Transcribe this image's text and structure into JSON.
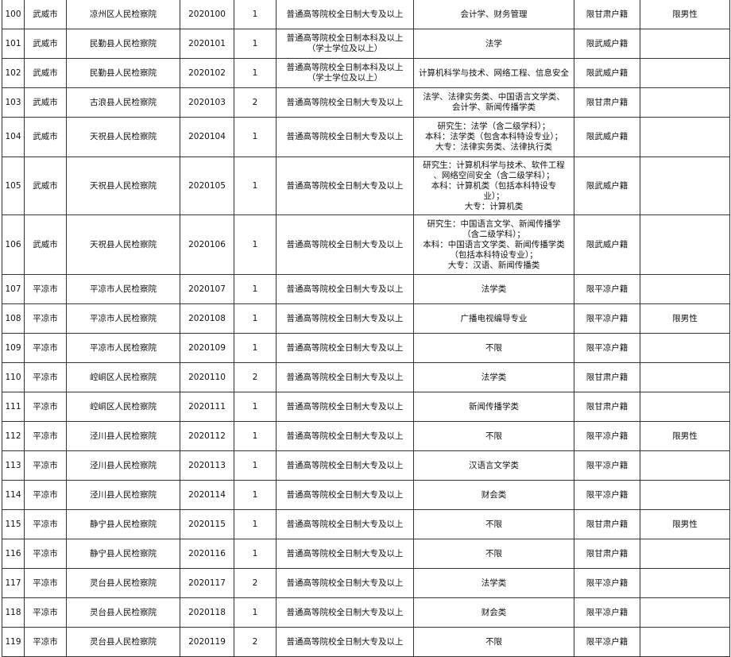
{
  "rows": [
    {
      "no": "100",
      "city": "武威市",
      "unit": "凉州区人民检察院",
      "code": "2020100",
      "count": "1",
      "edu": "普通高等院校全日制大专及以上",
      "major": "会计学、财务管理",
      "hukou": "限甘肃户籍",
      "note": "限男性"
    },
    {
      "no": "101",
      "city": "武威市",
      "unit": "民勤县人民检察院",
      "code": "2020101",
      "count": "1",
      "edu": "普通高等院校全日制本科及以上\n（学士学位及以上）",
      "major": "法学",
      "hukou": "限武威户籍",
      "note": ""
    },
    {
      "no": "102",
      "city": "武威市",
      "unit": "民勤县人民检察院",
      "code": "2020102",
      "count": "1",
      "edu": "普通高等院校全日制本科及以上\n（学士学位及以上）",
      "major": "计算机科学与技术、网络工程、信息安全",
      "hukou": "限武威户籍",
      "note": ""
    },
    {
      "no": "103",
      "city": "武威市",
      "unit": "古浪县人民检察院",
      "code": "2020103",
      "count": "2",
      "edu": "普通高等院校全日制大专及以上",
      "major": "法学、法律实务类、中国语言文学类、\n会计学、新闻传播学类",
      "hukou": "限甘肃户籍",
      "note": ""
    },
    {
      "no": "104",
      "city": "武威市",
      "unit": "天祝县人民检察院",
      "code": "2020104",
      "count": "1",
      "edu": "普通高等院校全日制大专及以上",
      "major": "研究生：法学（含二级学科）；\n本科：法学类（包含本科特设专业）；\n大专：法律实务类、法律执行类",
      "hukou": "限武威户籍",
      "note": ""
    },
    {
      "no": "105",
      "city": "武威市",
      "unit": "天祝县人民检察院",
      "code": "2020105",
      "count": "1",
      "edu": "普通高等院校全日制大专及以上",
      "major": "研究生：计算机科学与技术、软件工程\n、网络空间安全（含二级学科）；\n本科：计算机类（包括本科特设专\n业）；\n大专：计算机类",
      "hukou": "限武威户籍",
      "note": ""
    },
    {
      "no": "106",
      "city": "武威市",
      "unit": "天祝县人民检察院",
      "code": "2020106",
      "count": "1",
      "edu": "普通高等院校全日制大专及以上",
      "major": "研究生：中国语言文学、新闻传播学\n（含二级学科）；\n本科：中国语言文学类、新闻传播学类\n（包括本科特设专业）；\n大专：汉语、新闻传播类",
      "hukou": "限武威户籍",
      "note": ""
    },
    {
      "no": "107",
      "city": "平凉市",
      "unit": "平凉市人民检察院",
      "code": "2020107",
      "count": "1",
      "edu": "普通高等院校全日制大专及以上",
      "major": "法学类",
      "hukou": "限平凉户籍",
      "note": ""
    },
    {
      "no": "108",
      "city": "平凉市",
      "unit": "平凉市人民检察院",
      "code": "2020108",
      "count": "1",
      "edu": "普通高等院校全日制大专及以上",
      "major": "广播电视编导专业",
      "hukou": "限平凉户籍",
      "note": "限男性"
    },
    {
      "no": "109",
      "city": "平凉市",
      "unit": "平凉市人民检察院",
      "code": "2020109",
      "count": "1",
      "edu": "普通高等院校全日制大专及以上",
      "major": "不限",
      "hukou": "限平凉户籍",
      "note": ""
    },
    {
      "no": "110",
      "city": "平凉市",
      "unit": "崆峒区人民检察院",
      "code": "2020110",
      "count": "2",
      "edu": "普通高等院校全日制大专及以上",
      "major": "法学类",
      "hukou": "限甘肃户籍",
      "note": ""
    },
    {
      "no": "111",
      "city": "平凉市",
      "unit": "崆峒区人民检察院",
      "code": "2020111",
      "count": "1",
      "edu": "普通高等院校全日制大专及以上",
      "major": "新闻传播学类",
      "hukou": "限甘肃户籍",
      "note": ""
    },
    {
      "no": "112",
      "city": "平凉市",
      "unit": "泾川县人民检察院",
      "code": "2020112",
      "count": "1",
      "edu": "普通高等院校全日制大专及以上",
      "major": "不限",
      "hukou": "限平凉户籍",
      "note": "限男性"
    },
    {
      "no": "113",
      "city": "平凉市",
      "unit": "泾川县人民检察院",
      "code": "2020113",
      "count": "1",
      "edu": "普通高等院校全日制大专及以上",
      "major": "汉语言文学类",
      "hukou": "限平凉户籍",
      "note": ""
    },
    {
      "no": "114",
      "city": "平凉市",
      "unit": "泾川县人民检察院",
      "code": "2020114",
      "count": "1",
      "edu": "普通高等院校全日制大专及以上",
      "major": "财会类",
      "hukou": "限平凉户籍",
      "note": ""
    },
    {
      "no": "115",
      "city": "平凉市",
      "unit": "静宁县人民检察院",
      "code": "2020115",
      "count": "1",
      "edu": "普通高等院校全日制大专及以上",
      "major": "不限",
      "hukou": "限甘肃户籍",
      "note": "限男性"
    },
    {
      "no": "116",
      "city": "平凉市",
      "unit": "静宁县人民检察院",
      "code": "2020116",
      "count": "1",
      "edu": "普通高等院校全日制大专及以上",
      "major": "不限",
      "hukou": "限甘肃户籍",
      "note": ""
    },
    {
      "no": "117",
      "city": "平凉市",
      "unit": "灵台县人民检察院",
      "code": "2020117",
      "count": "2",
      "edu": "普通高等院校全日制大专及以上",
      "major": "法学类",
      "hukou": "限平凉户籍",
      "note": ""
    },
    {
      "no": "118",
      "city": "平凉市",
      "unit": "灵台县人民检察院",
      "code": "2020118",
      "count": "1",
      "edu": "普通高等院校全日制大专及以上",
      "major": "财会类",
      "hukou": "限平凉户籍",
      "note": ""
    },
    {
      "no": "119",
      "city": "平凉市",
      "unit": "灵台县人民检察院",
      "code": "2020119",
      "count": "2",
      "edu": "普通高等院校全日制大专及以上",
      "major": "不限",
      "hukou": "限平凉户籍",
      "note": ""
    }
  ]
}
